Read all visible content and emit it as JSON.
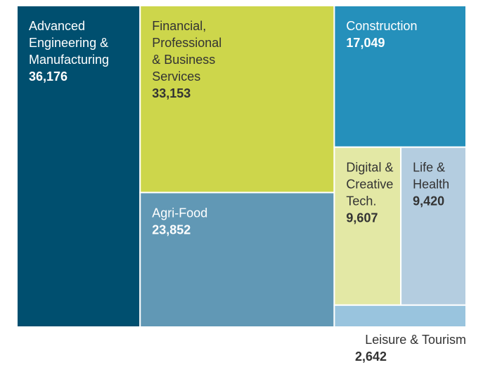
{
  "chart_data": {
    "type": "treemap",
    "items": [
      {
        "label": "Advanced\nEngineering &\nManufacturing",
        "value": 36176,
        "value_text": "36,176",
        "color": "#004f6f",
        "text_color": "#ffffff"
      },
      {
        "label": "Financial,\nProfessional\n& Business\nServices",
        "value": 33153,
        "value_text": "33,153",
        "color": "#cdd64b",
        "text_color": "#333333"
      },
      {
        "label": "Agri-Food",
        "value": 23852,
        "value_text": "23,852",
        "color": "#6198b5",
        "text_color": "#ffffff"
      },
      {
        "label": "Construction",
        "value": 17049,
        "value_text": "17,049",
        "color": "#2590bb",
        "text_color": "#ffffff"
      },
      {
        "label": "Digital &\nCreative\nTech.",
        "value": 9607,
        "value_text": "9,607",
        "color": "#e3e8a5",
        "text_color": "#333333"
      },
      {
        "label": "Life &\nHealth",
        "value": 9420,
        "value_text": "9,420",
        "color": "#b4cde0",
        "text_color": "#333333"
      },
      {
        "label": "Leisure & Tourism",
        "value": 2642,
        "value_text": "2,642",
        "color": "#99c4de",
        "text_color": "#333333"
      }
    ]
  }
}
